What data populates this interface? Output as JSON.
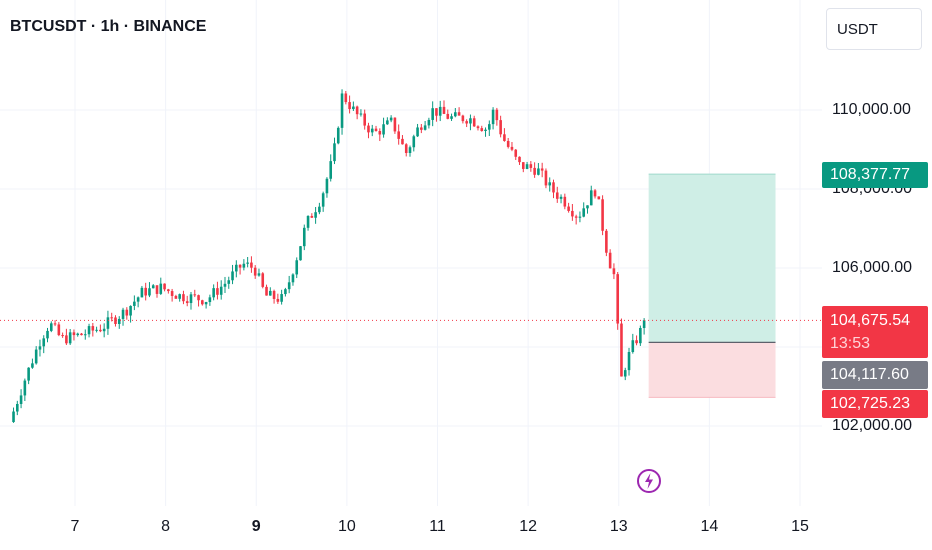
{
  "header": {
    "symbol_title": "BTCUSDT · 1h · BINANCE",
    "currency_button": "USDT"
  },
  "price_axis": {
    "ticks": [
      "110,000.00",
      "106,000.00",
      "102,000.00"
    ],
    "hidden_tick": "108,000.00"
  },
  "time_axis": {
    "ticks": [
      "7",
      "8",
      "9",
      "10",
      "11",
      "12",
      "13",
      "14",
      "15"
    ],
    "bold_tick": "9"
  },
  "price_labels": {
    "target": "108,377.77",
    "current": "104,675.54",
    "countdown": "13:53",
    "entry": "104,117.60",
    "stop": "102,725.23"
  },
  "icons": {
    "event_marker": "lightning-icon"
  },
  "colors": {
    "up": "#089981",
    "down": "#f23645",
    "profit_zone": "#cfeee6",
    "loss_zone": "#fbdde0",
    "entry_label": "#787b86",
    "event_marker": "#9c27b0"
  },
  "chart_data": {
    "type": "candlestick",
    "symbol": "BTCUSDT",
    "interval": "1h",
    "exchange": "BINANCE",
    "x_range_days": [
      6.25,
      15.3
    ],
    "ylim": [
      101600,
      111300
    ],
    "y_ticks": [
      102000,
      106000,
      110000
    ],
    "x_ticks": [
      7,
      8,
      9,
      10,
      11,
      12,
      13,
      14,
      15
    ],
    "anchors": [
      [
        6.28,
        102100
      ],
      [
        6.45,
        103200
      ],
      [
        6.62,
        104200
      ],
      [
        6.72,
        104600
      ],
      [
        6.85,
        104200
      ],
      [
        7.05,
        104300
      ],
      [
        7.3,
        104500
      ],
      [
        7.55,
        104900
      ],
      [
        7.75,
        105400
      ],
      [
        7.95,
        105500
      ],
      [
        8.15,
        105300
      ],
      [
        8.45,
        105200
      ],
      [
        8.65,
        105600
      ],
      [
        8.85,
        106100
      ],
      [
        8.98,
        106000
      ],
      [
        9.1,
        105300
      ],
      [
        9.3,
        105200
      ],
      [
        9.45,
        106300
      ],
      [
        9.55,
        107100
      ],
      [
        9.72,
        107800
      ],
      [
        9.85,
        108800
      ],
      [
        9.95,
        110400
      ],
      [
        10.1,
        109900
      ],
      [
        10.3,
        109400
      ],
      [
        10.5,
        109700
      ],
      [
        10.65,
        108900
      ],
      [
        10.8,
        109600
      ],
      [
        10.95,
        110000
      ],
      [
        11.15,
        109800
      ],
      [
        11.35,
        109800
      ],
      [
        11.55,
        109500
      ],
      [
        11.62,
        110000
      ],
      [
        11.72,
        109300
      ],
      [
        11.9,
        108600
      ],
      [
        12.1,
        108500
      ],
      [
        12.25,
        108000
      ],
      [
        12.4,
        107700
      ],
      [
        12.55,
        107300
      ],
      [
        12.68,
        107800
      ],
      [
        12.75,
        108000
      ],
      [
        12.8,
        107300
      ],
      [
        12.88,
        106300
      ],
      [
        12.95,
        105800
      ],
      [
        12.98,
        104700
      ],
      [
        13.03,
        103200
      ],
      [
        13.08,
        103600
      ],
      [
        13.15,
        104000
      ],
      [
        13.22,
        104300
      ],
      [
        13.3,
        104675.54
      ]
    ],
    "position": {
      "type": "long",
      "entry": 104117.6,
      "target": 108377.77,
      "stop": 102725.23,
      "start_day": 13.33,
      "end_day": 14.73
    },
    "current_price": 104675.54,
    "countdown": "13:53"
  }
}
